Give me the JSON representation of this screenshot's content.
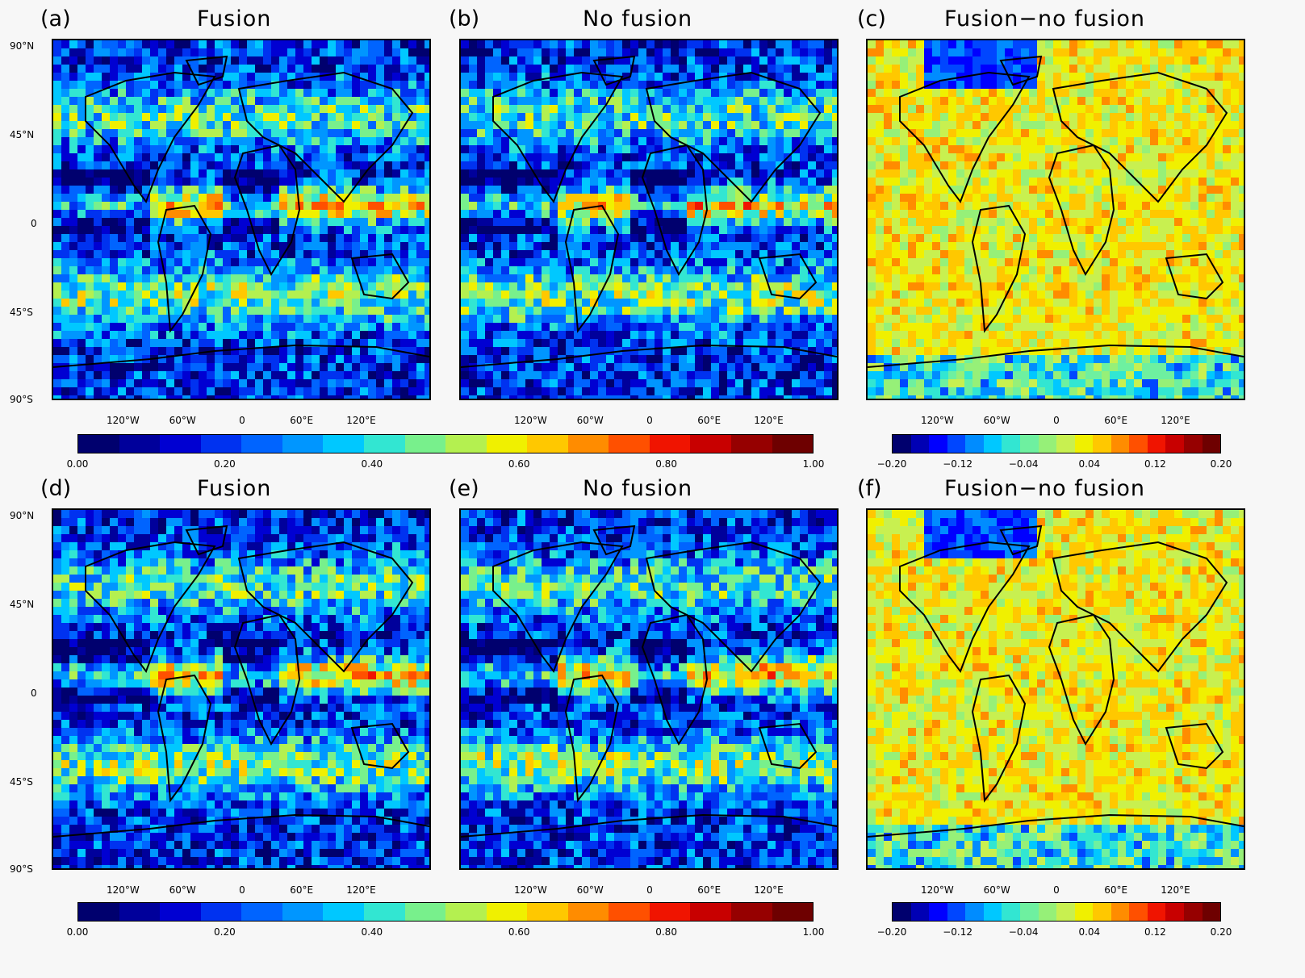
{
  "panels": [
    {
      "letter": "(a)",
      "title": "Fusion",
      "scale": "seq",
      "seed": 1
    },
    {
      "letter": "(b)",
      "title": "No  fusion",
      "scale": "seq",
      "seed": 2
    },
    {
      "letter": "(c)",
      "title": "Fusion−no fusion",
      "scale": "div",
      "seed": 3
    },
    {
      "letter": "(d)",
      "title": "Fusion",
      "scale": "seq",
      "seed": 4
    },
    {
      "letter": "(e)",
      "title": "No  fusion",
      "scale": "seq",
      "seed": 5
    },
    {
      "letter": "(f)",
      "title": "Fusion−no fusion",
      "scale": "div",
      "seed": 6
    }
  ],
  "lat_labels": [
    "90°N",
    "45°N",
    "0",
    "45°S",
    "90°S"
  ],
  "lon_labels": [
    "120°W",
    "60°W",
    "0",
    "60°E",
    "120°E"
  ],
  "colorbar_seq": {
    "labels": [
      "0.00",
      "0.20",
      "0.40",
      "0.60",
      "0.80",
      "1.00"
    ],
    "colors": [
      "#00006e",
      "#00009b",
      "#0000d2",
      "#0032f0",
      "#0064ff",
      "#0096ff",
      "#00c8ff",
      "#32e6d2",
      "#78f08c",
      "#b4f050",
      "#f0f000",
      "#ffc800",
      "#ff8c00",
      "#ff5000",
      "#f01400",
      "#c80000",
      "#960000",
      "#6e0000"
    ]
  },
  "colorbar_div": {
    "labels": [
      "−0.20",
      "−0.12",
      "−0.04",
      "0.04",
      "0.12",
      "0.20"
    ],
    "colors": [
      "#00006e",
      "#0000b4",
      "#0000ff",
      "#0046ff",
      "#008cff",
      "#00c8ff",
      "#32e6d2",
      "#6ef0a0",
      "#96f078",
      "#c8f050",
      "#f0f000",
      "#ffc800",
      "#ff8c00",
      "#ff5000",
      "#f01400",
      "#c80000",
      "#960000",
      "#6e0000"
    ]
  }
}
